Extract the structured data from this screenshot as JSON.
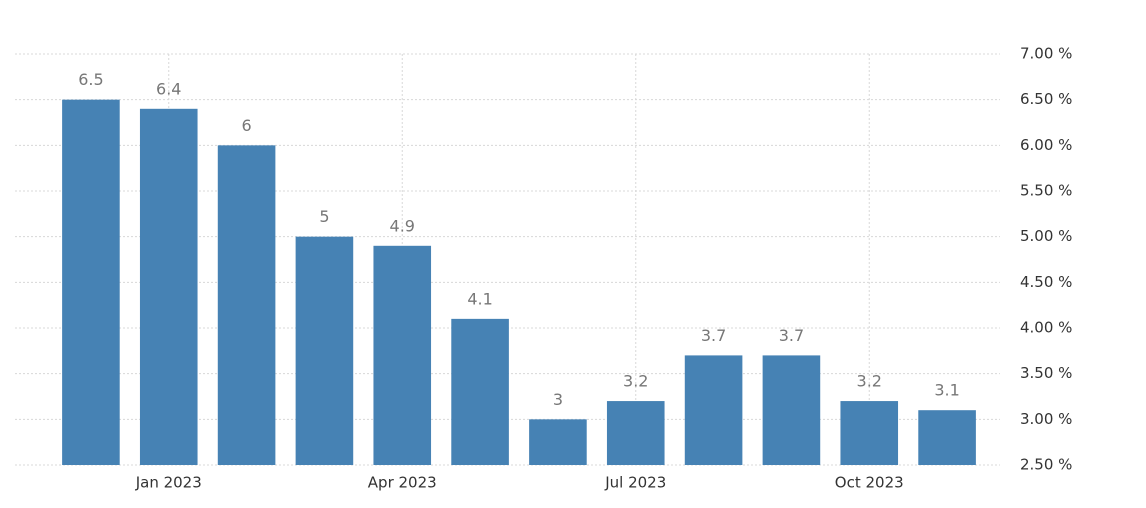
{
  "chart_data": {
    "type": "bar",
    "categories": [
      null,
      "Jan 2023",
      null,
      null,
      "Apr 2023",
      null,
      null,
      "Jul 2023",
      null,
      null,
      "Oct 2023",
      null
    ],
    "values": [
      6.5,
      6.4,
      6,
      5,
      4.9,
      4.1,
      3,
      3.2,
      3.7,
      3.7,
      3.2,
      3.1
    ],
    "color": "#4682b4",
    "ylim": [
      2.5,
      7.0
    ],
    "yticks": [
      {
        "value": 2.5,
        "label": "2.50 %"
      },
      {
        "value": 3.0,
        "label": "3.00 %"
      },
      {
        "value": 3.5,
        "label": "3.50 %"
      },
      {
        "value": 4.0,
        "label": "4.00 %"
      },
      {
        "value": 4.5,
        "label": "4.50 %"
      },
      {
        "value": 5.0,
        "label": "5.00 %"
      },
      {
        "value": 5.5,
        "label": "5.50 %"
      },
      {
        "value": 6.0,
        "label": "6.00 %"
      },
      {
        "value": 6.5,
        "label": "6.50 %"
      },
      {
        "value": 7.0,
        "label": "7.00 %"
      }
    ],
    "grid": true
  }
}
